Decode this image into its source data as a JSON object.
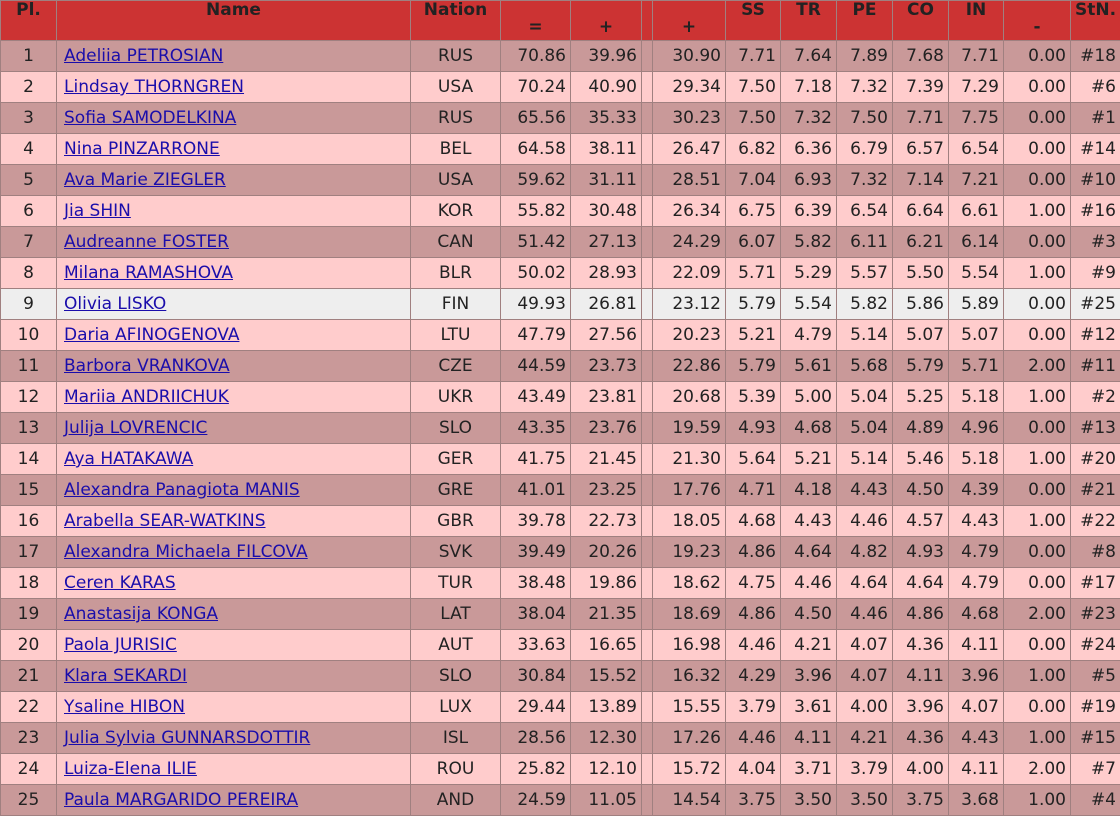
{
  "table": {
    "header_color": "#cc3333",
    "row_colors": [
      "#c99999",
      "#ffcccc"
    ],
    "highlight_color": "#eeeeee",
    "highlight_row": 8,
    "headers": [
      "Pl.",
      "Name",
      "Nation",
      "=",
      "+",
      "+",
      "SS",
      "TR",
      "PE",
      "CO",
      "IN",
      "-",
      "StN."
    ],
    "rows": [
      [
        "1",
        "Adeliia PETROSIAN",
        "RUS",
        "70.86",
        "39.96",
        "30.90",
        "7.71",
        "7.64",
        "7.89",
        "7.68",
        "7.71",
        "0.00",
        "#18"
      ],
      [
        "2",
        "Lindsay THORNGREN",
        "USA",
        "70.24",
        "40.90",
        "29.34",
        "7.50",
        "7.18",
        "7.32",
        "7.39",
        "7.29",
        "0.00",
        "#6"
      ],
      [
        "3",
        "Sofia SAMODELKINA",
        "RUS",
        "65.56",
        "35.33",
        "30.23",
        "7.50",
        "7.32",
        "7.50",
        "7.71",
        "7.75",
        "0.00",
        "#1"
      ],
      [
        "4",
        "Nina PINZARRONE",
        "BEL",
        "64.58",
        "38.11",
        "26.47",
        "6.82",
        "6.36",
        "6.79",
        "6.57",
        "6.54",
        "0.00",
        "#14"
      ],
      [
        "5",
        "Ava Marie ZIEGLER",
        "USA",
        "59.62",
        "31.11",
        "28.51",
        "7.04",
        "6.93",
        "7.32",
        "7.14",
        "7.21",
        "0.00",
        "#10"
      ],
      [
        "6",
        "Jia SHIN",
        "KOR",
        "55.82",
        "30.48",
        "26.34",
        "6.75",
        "6.39",
        "6.54",
        "6.64",
        "6.61",
        "1.00",
        "#16"
      ],
      [
        "7",
        "Audreanne FOSTER",
        "CAN",
        "51.42",
        "27.13",
        "24.29",
        "6.07",
        "5.82",
        "6.11",
        "6.21",
        "6.14",
        "0.00",
        "#3"
      ],
      [
        "8",
        "Milana RAMASHOVA",
        "BLR",
        "50.02",
        "28.93",
        "22.09",
        "5.71",
        "5.29",
        "5.57",
        "5.50",
        "5.54",
        "1.00",
        "#9"
      ],
      [
        "9",
        "Olivia LISKO",
        "FIN",
        "49.93",
        "26.81",
        "23.12",
        "5.79",
        "5.54",
        "5.82",
        "5.86",
        "5.89",
        "0.00",
        "#25"
      ],
      [
        "10",
        "Daria AFINOGENOVA",
        "LTU",
        "47.79",
        "27.56",
        "20.23",
        "5.21",
        "4.79",
        "5.14",
        "5.07",
        "5.07",
        "0.00",
        "#12"
      ],
      [
        "11",
        "Barbora VRANKOVA",
        "CZE",
        "44.59",
        "23.73",
        "22.86",
        "5.79",
        "5.61",
        "5.68",
        "5.79",
        "5.71",
        "2.00",
        "#11"
      ],
      [
        "12",
        "Mariia ANDRIICHUK",
        "UKR",
        "43.49",
        "23.81",
        "20.68",
        "5.39",
        "5.00",
        "5.04",
        "5.25",
        "5.18",
        "1.00",
        "#2"
      ],
      [
        "13",
        "Julija LOVRENCIC",
        "SLO",
        "43.35",
        "23.76",
        "19.59",
        "4.93",
        "4.68",
        "5.04",
        "4.89",
        "4.96",
        "0.00",
        "#13"
      ],
      [
        "14",
        "Aya HATAKAWA",
        "GER",
        "41.75",
        "21.45",
        "21.30",
        "5.64",
        "5.21",
        "5.14",
        "5.46",
        "5.18",
        "1.00",
        "#20"
      ],
      [
        "15",
        "Alexandra Panagiota MANIS",
        "GRE",
        "41.01",
        "23.25",
        "17.76",
        "4.71",
        "4.18",
        "4.43",
        "4.50",
        "4.39",
        "0.00",
        "#21"
      ],
      [
        "16",
        "Arabella SEAR-WATKINS",
        "GBR",
        "39.78",
        "22.73",
        "18.05",
        "4.68",
        "4.43",
        "4.46",
        "4.57",
        "4.43",
        "1.00",
        "#22"
      ],
      [
        "17",
        "Alexandra Michaela FILCOVA",
        "SVK",
        "39.49",
        "20.26",
        "19.23",
        "4.86",
        "4.64",
        "4.82",
        "4.93",
        "4.79",
        "0.00",
        "#8"
      ],
      [
        "18",
        "Ceren KARAS",
        "TUR",
        "38.48",
        "19.86",
        "18.62",
        "4.75",
        "4.46",
        "4.64",
        "4.64",
        "4.79",
        "0.00",
        "#17"
      ],
      [
        "19",
        "Anastasija KONGA",
        "LAT",
        "38.04",
        "21.35",
        "18.69",
        "4.86",
        "4.50",
        "4.46",
        "4.86",
        "4.68",
        "2.00",
        "#23"
      ],
      [
        "20",
        "Paola JURISIC",
        "AUT",
        "33.63",
        "16.65",
        "16.98",
        "4.46",
        "4.21",
        "4.07",
        "4.36",
        "4.11",
        "0.00",
        "#24"
      ],
      [
        "21",
        "Klara SEKARDI",
        "SLO",
        "30.84",
        "15.52",
        "16.32",
        "4.29",
        "3.96",
        "4.07",
        "4.11",
        "3.96",
        "1.00",
        "#5"
      ],
      [
        "22",
        "Ysaline HIBON",
        "LUX",
        "29.44",
        "13.89",
        "15.55",
        "3.79",
        "3.61",
        "4.00",
        "3.96",
        "4.07",
        "0.00",
        "#19"
      ],
      [
        "23",
        "Julia Sylvia GUNNARSDOTTIR",
        "ISL",
        "28.56",
        "12.30",
        "17.26",
        "4.46",
        "4.11",
        "4.21",
        "4.36",
        "4.43",
        "1.00",
        "#15"
      ],
      [
        "24",
        "Luiza-Elena ILIE",
        "ROU",
        "25.82",
        "12.10",
        "15.72",
        "4.04",
        "3.71",
        "3.79",
        "4.00",
        "4.11",
        "2.00",
        "#7"
      ],
      [
        "25",
        "Paula MARGARIDO PEREIRA",
        "AND",
        "24.59",
        "11.05",
        "14.54",
        "3.75",
        "3.50",
        "3.50",
        "3.75",
        "3.68",
        "1.00",
        "#4"
      ]
    ]
  }
}
